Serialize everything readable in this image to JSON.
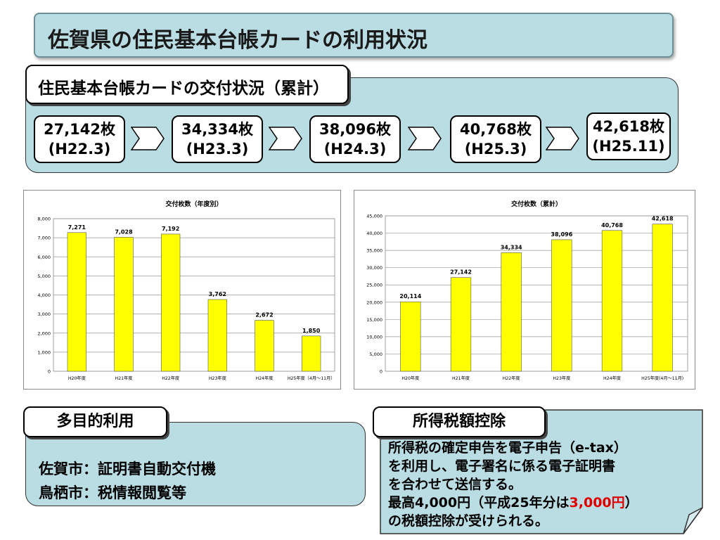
{
  "title": "佐賀県の住民基本台帳カードの利用状況",
  "flow": {
    "heading": "住民基本台帳カードの交付状況（累計）",
    "items": [
      {
        "count": "27,142枚",
        "date": "(H22.3)"
      },
      {
        "count": "34,334枚",
        "date": "(H23.3)"
      },
      {
        "count": "38,096枚",
        "date": "(H24.3)"
      },
      {
        "count": "40,768枚",
        "date": "(H25.3)"
      },
      {
        "count": "42,618枚",
        "date": "(H25.11)"
      }
    ]
  },
  "chart_data": [
    {
      "type": "bar",
      "title": "交付枚数（年度別）",
      "categories": [
        "H20年度",
        "H21年度",
        "H22年度",
        "H23年度",
        "H24年度",
        "H25年度（4月～11月）"
      ],
      "values": [
        7271,
        7028,
        7192,
        3762,
        2672,
        1850
      ],
      "data_labels": [
        "7,271",
        "7,028",
        "7,192",
        "3,762",
        "2,672",
        "1,850"
      ],
      "yticks": [
        "0",
        "1,000",
        "2,000",
        "3,000",
        "4,000",
        "5,000",
        "6,000",
        "7,000",
        "8,000"
      ],
      "ylim": [
        0,
        8000
      ],
      "grid": true,
      "bar_color": "#ffff00"
    },
    {
      "type": "bar",
      "title": "交付枚数（累計）",
      "categories": [
        "H20年度",
        "H21年度",
        "H22年度",
        "H23年度",
        "H24年度",
        "H25年度(4月～11月)"
      ],
      "values": [
        20114,
        27142,
        34334,
        38096,
        40768,
        42618
      ],
      "data_labels": [
        "20,114",
        "27,142",
        "34,334",
        "38,096",
        "40,768",
        "42,618"
      ],
      "yticks": [
        "0",
        "5,000",
        "10,000",
        "15,000",
        "20,000",
        "25,000",
        "30,000",
        "35,000",
        "40,000",
        "45,000"
      ],
      "ylim": [
        0,
        45000
      ],
      "grid": true,
      "bar_color": "#ffff00"
    }
  ],
  "multi": {
    "heading": "多目的利用",
    "lines": [
      "佐賀市：証明書自動交付機",
      "鳥栖市：税情報閲覧等"
    ]
  },
  "tax": {
    "heading": "所得税額控除",
    "line1": "所得税の確定申告を電子申告（e-tax）",
    "line2": "を利用し、電子署名に係る電子証明書",
    "line3": "を合わせて送信する。",
    "line4_pre": "最高4,000円（平成25年分は",
    "line4_red": "3,000円",
    "line4_post": "）",
    "line5": "の税額控除が受けられる。"
  },
  "colors": {
    "panel": "#b9dde3",
    "bar": "#ffff00",
    "highlight": "#e00000"
  }
}
